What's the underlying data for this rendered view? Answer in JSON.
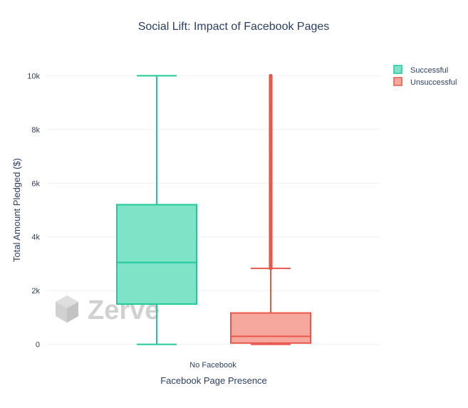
{
  "chart_data": {
    "type": "box",
    "title": "Social Lift: Impact of Facebook Pages",
    "xlabel": "Facebook Page Presence",
    "ylabel": "Total Amount Pledged ($)",
    "categories": [
      "No Facebook"
    ],
    "ylim": [
      -300,
      10300
    ],
    "yticks": [
      0,
      2000,
      4000,
      6000,
      8000,
      10000
    ],
    "ytick_labels": [
      "0",
      "2k",
      "4k",
      "6k",
      "8k",
      "10k"
    ],
    "grid": true,
    "legend_position": "top-right",
    "series": [
      {
        "name": "Successful",
        "color": "#1fc99a",
        "fill": "#7fe3c8",
        "min": 0,
        "q1": 1500,
        "median": 3050,
        "q3": 5200,
        "max": 10000,
        "outliers": []
      },
      {
        "name": "Unsuccessful",
        "color": "#e8574a",
        "fill": "#f7a89e",
        "min": 0,
        "q1": 50,
        "median": 300,
        "q3": 1170,
        "max": 2830,
        "outliers_range": [
          2830,
          10000
        ]
      }
    ]
  },
  "watermark": {
    "text": "Zerve",
    "icon": "cube-logo-icon"
  }
}
